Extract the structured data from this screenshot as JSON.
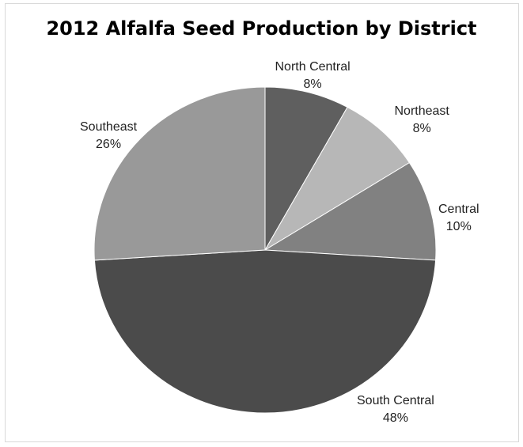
{
  "chart_data": {
    "type": "pie",
    "title": "2012 Alfalfa Seed Production by District",
    "slices": [
      {
        "label": "North Central",
        "value": 8,
        "value_label": "8%",
        "color": "#5f5f5f"
      },
      {
        "label": "Northeast",
        "value": 8,
        "value_label": "8%",
        "color": "#b7b7b7"
      },
      {
        "label": "Central",
        "value": 10,
        "value_label": "10%",
        "color": "#818181"
      },
      {
        "label": "South Central",
        "value": 48,
        "value_label": "48%",
        "color": "#4b4b4b"
      },
      {
        "label": "Southeast",
        "value": 26,
        "value_label": "26%",
        "color": "#999999"
      }
    ],
    "start_angle": "12 o'clock",
    "direction": "clockwise",
    "legend": "none"
  }
}
